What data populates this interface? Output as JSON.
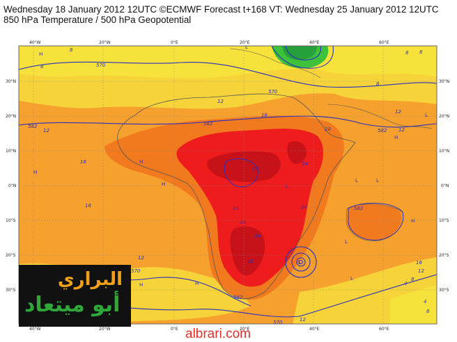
{
  "header": {
    "line1": "Wednesday 18 January 2012 12UTC ©ECMWF Forecast t+168 VT: Wednesday 25 January 2012 12UTC",
    "line2": "850 hPa Temperature / 500 hPa Geopotential"
  },
  "axes": {
    "longitudes_top": [
      "40°W",
      "20°W",
      "0°E",
      "20°E",
      "40°E",
      "60°E"
    ],
    "longitudes_bottom": [
      "40°W",
      "20°W",
      "0°E",
      "20°E",
      "40°E",
      "60°E"
    ],
    "latitudes_left": [
      "30°N",
      "20°N",
      "10°N",
      "0°N",
      "10°S",
      "20°S",
      "30°S"
    ],
    "latitudes_right": [
      "30°N",
      "20°N",
      "10°N",
      "0°N",
      "10°S",
      "20°S",
      "30°S"
    ]
  },
  "contour_labels": [
    "570",
    "570",
    "582",
    "582",
    "582",
    "582",
    "570",
    "582",
    "570"
  ],
  "temp_labels": [
    "8",
    "8",
    "12",
    "12",
    "16",
    "16",
    "16",
    "20",
    "20",
    "24",
    "24",
    "24",
    "24",
    "24",
    "16",
    "12",
    "8",
    "8",
    "12",
    "12",
    "16",
    "4",
    "8",
    "4",
    "8",
    "12",
    "12",
    "8"
  ],
  "centers": [
    "H",
    "H",
    "H",
    "H",
    "H",
    "H",
    "L",
    "L",
    "L",
    "L",
    "L",
    "L",
    "H",
    "H",
    "L",
    "L"
  ],
  "colors": {
    "ocean_orange": "#f6a02e",
    "yellow": "#f6e23a",
    "deep_orange": "#f27a1e",
    "red": "#ee1c1c",
    "dark_red": "#c8121a",
    "green": "#3ec23a",
    "contour": "#2a2fbf",
    "coast": "#555555"
  },
  "logo": {
    "top_text": "البراري",
    "bottom_text": "أبو ميتعاد"
  },
  "watermark": "albrari.com"
}
